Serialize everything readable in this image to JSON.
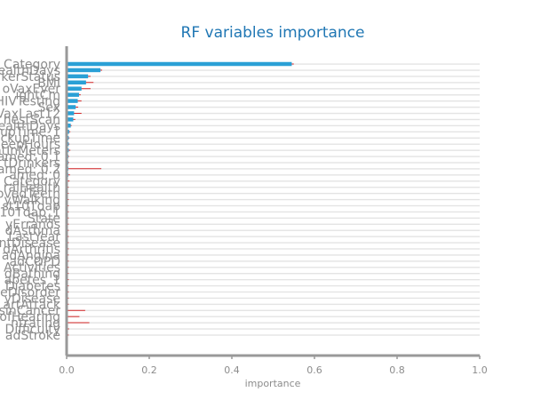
{
  "chart_data": {
    "type": "bar",
    "orientation": "horizontal",
    "title": "RF variables importance",
    "xlabel": "importance",
    "ylabel": "",
    "xlim": [
      0,
      1
    ],
    "xticks": [
      "0.0",
      "0.2",
      "0.4",
      "0.6",
      "0.8",
      "1.0"
    ],
    "grid": false,
    "colors": {
      "bar": "#2aa0d6",
      "error": "#d62728",
      "title": "#2077b4",
      "axis": "#999999",
      "band": "#e4e4e4"
    },
    "categories": [
      "Category",
      "ealthDays",
      "kerStatus",
      "BMI",
      "oVaxEver",
      "ightCm",
      "HIVTesting",
      "Sex",
      "VaxLast12",
      "hestScan",
      "ealthDays",
      "upTime_1",
      "ckupTime",
      "eepHours",
      "htInMeters",
      "amed: 0.1",
      "tDrinkers",
      "amed: 0.2",
      "amed: 0",
      "Category",
      "ralHealth",
      "ovedTeeth",
      "yWalking",
      "st10Tdap",
      "10Tdap_1",
      "State",
      "yErrands",
      "dAsthma",
      "LastYear",
      "ntDisease",
      "dArthritis",
      "adAngina",
      "adCOPD",
      "Activities",
      "dBathing",
      "abetes_1",
      "Diabetes",
      "eDisorder",
      "yDisease",
      "artAttack",
      "sinCancer",
      "ofHearing",
      "ntrating",
      "Difficulty",
      "adStroke"
    ],
    "values": [
      0.545,
      0.082,
      0.052,
      0.047,
      0.036,
      0.03,
      0.027,
      0.022,
      0.018,
      0.016,
      0.01,
      0.006,
      0.005,
      0.005,
      0.005,
      0.004,
      0.004,
      0.004,
      0.004,
      0.003,
      0.003,
      0.003,
      0.003,
      0.003,
      0.003,
      0.003,
      0.003,
      0.003,
      0.003,
      0.003,
      0.003,
      0.003,
      0.003,
      0.003,
      0.003,
      0.003,
      0.003,
      0.003,
      0.003,
      0.003,
      0.003,
      0.003,
      0.003,
      0.003,
      0.003
    ],
    "errors": [
      0.005,
      0.004,
      0.006,
      0.018,
      0.022,
      0.004,
      0.009,
      0.006,
      0.018,
      0.005,
      0.002,
      0.003,
      0.002,
      0.002,
      0.004,
      0.002,
      0.002,
      0.08,
      0.004,
      0.004,
      0.002,
      0.002,
      0.002,
      0.002,
      0.002,
      0.002,
      0.002,
      0.002,
      0.002,
      0.002,
      0.002,
      0.002,
      0.002,
      0.002,
      0.002,
      0.002,
      0.002,
      0.002,
      0.002,
      0.002,
      0.042,
      0.028,
      0.052,
      0.003,
      0.002
    ]
  }
}
